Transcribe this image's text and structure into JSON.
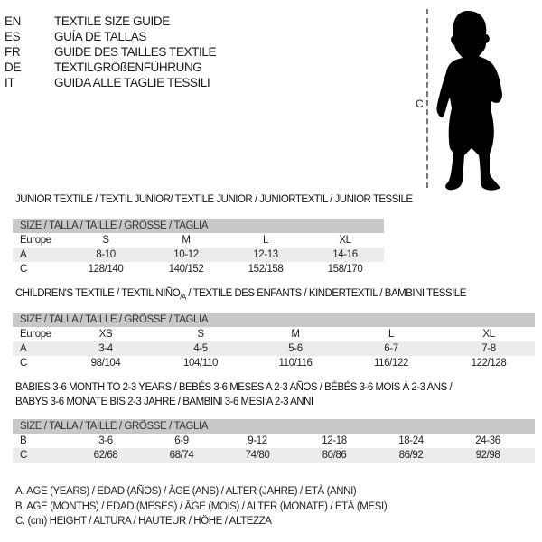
{
  "languages": [
    {
      "code": "EN",
      "title": "TEXTILE SIZE GUIDE"
    },
    {
      "code": "ES",
      "title": "GUÍA DE TALLAS"
    },
    {
      "code": "FR",
      "title": "GUIDE DES TAILLES TEXTILE"
    },
    {
      "code": "DE",
      "title": "TEXTILGRÖßENFÜHRUNG"
    },
    {
      "code": "IT",
      "title": "GUIDA ALLE TAGLIE TESSILI"
    }
  ],
  "figure": {
    "measure_label": "C",
    "icon": "child-silhouette-icon"
  },
  "size_header": "SIZE / TALLA / TAILLE / GRÖSSE / TAGLIA",
  "junior": {
    "title": "JUNIOR TEXTILE / TEXTIL JUNIOR/ TEXTILE JUNIOR / JUNIORTEXTIL / JUNIOR TESSILE",
    "rows": [
      {
        "label": "Europe",
        "values": [
          "S",
          "M",
          "L",
          "XL"
        ]
      },
      {
        "label": "A",
        "values": [
          "8-10",
          "10-12",
          "12-13",
          "14-16"
        ]
      },
      {
        "label": "C",
        "values": [
          "128/140",
          "140/152",
          "152/158",
          "158/170"
        ]
      }
    ]
  },
  "children": {
    "title_a": "CHILDREN'S TEXTILE / TEXTIL NIÑO",
    "title_sub": "/A",
    "title_b": " / TEXTILE DES ENFANTS / KINDERTEXTIL / BAMBINI TESSILE",
    "rows": [
      {
        "label": "Europe",
        "values": [
          "XS",
          "S",
          "M",
          "L",
          "XL"
        ]
      },
      {
        "label": "A",
        "values": [
          "3-4",
          "4-5",
          "5-6",
          "6-7",
          "7-8"
        ]
      },
      {
        "label": "C",
        "values": [
          "98/104",
          "104/110",
          "110/116",
          "116/122",
          "122/128"
        ]
      }
    ]
  },
  "babies": {
    "title_line1": "BABIES 3-6 MONTH TO 2-3 YEARS / BEBÉS 3-6 MESES A 2-3 AÑOS / BÉBÉS 3-6 MOIS À 2-3 ANS /",
    "title_line2": "BABYS 3-6 MONATE BIS 2-3 JAHRE / BAMBINI 3-6 MESI A 2-3 ANNI",
    "rows": [
      {
        "label": "B",
        "values": [
          "3-6",
          "6-9",
          "9-12",
          "12-18",
          "18-24",
          "24-36"
        ]
      },
      {
        "label": "C",
        "values": [
          "62/68",
          "68/74",
          "74/80",
          "80/86",
          "86/92",
          "92/98"
        ]
      }
    ]
  },
  "legend": [
    "A. AGE (YEARS) / EDAD (AÑOS) / ÂGE (ANS) / ALTER (JAHRE) / ETÀ (ANNI)",
    "B. AGE (MONTHS) / EDAD (MESES) / ÂGE (MOIS) / ALTER (MONATE) / ETÀ (MESI)",
    "C. (cm) HEIGHT / ALTURA / HAUTEUR / HÖHE / ALTEZZA"
  ]
}
